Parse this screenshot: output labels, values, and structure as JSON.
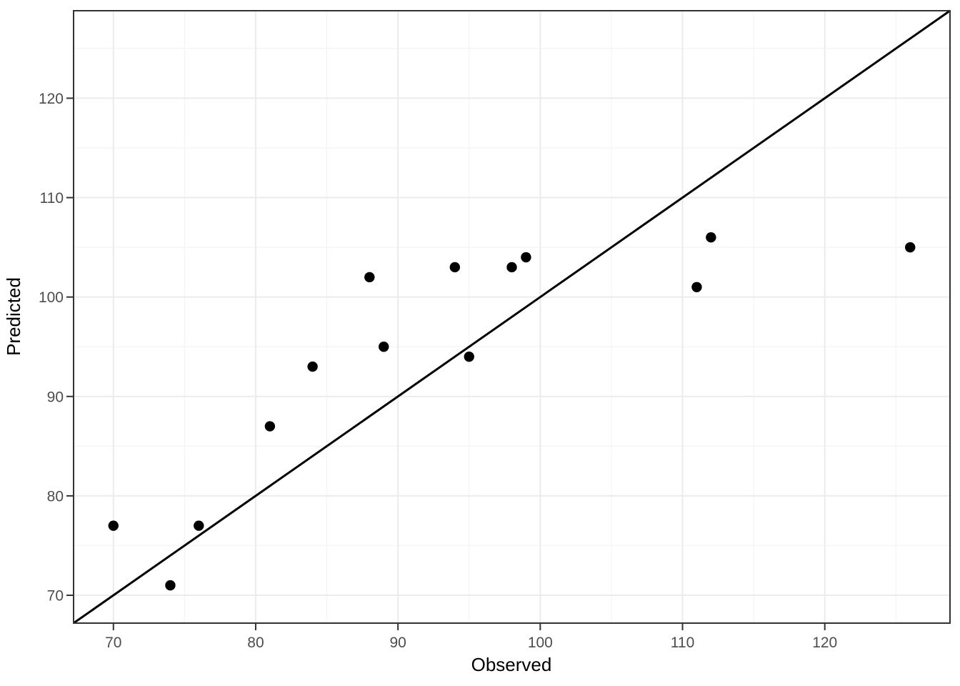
{
  "chart_data": {
    "type": "scatter",
    "title": "",
    "xlabel": "Observed",
    "ylabel": "Predicted",
    "x_range": [
      67.2,
      128.8
    ],
    "y_range": [
      67.2,
      128.8
    ],
    "x_major_ticks": [
      70,
      80,
      90,
      100,
      110,
      120
    ],
    "y_major_ticks": [
      70,
      80,
      90,
      100,
      110,
      120
    ],
    "x_minor_ticks": [
      75,
      85,
      95,
      105,
      115,
      125
    ],
    "y_minor_ticks": [
      75,
      85,
      95,
      105,
      115,
      125
    ],
    "grid": "major+minor",
    "legend": "none",
    "reference_line": {
      "slope": 1,
      "intercept": 0
    },
    "points": [
      {
        "x": 70,
        "y": 77
      },
      {
        "x": 74,
        "y": 71
      },
      {
        "x": 76,
        "y": 77
      },
      {
        "x": 81,
        "y": 87
      },
      {
        "x": 84,
        "y": 93
      },
      {
        "x": 88,
        "y": 102
      },
      {
        "x": 89,
        "y": 95
      },
      {
        "x": 94,
        "y": 103
      },
      {
        "x": 95,
        "y": 94
      },
      {
        "x": 98,
        "y": 103
      },
      {
        "x": 99,
        "y": 104
      },
      {
        "x": 111,
        "y": 101
      },
      {
        "x": 112,
        "y": 106
      },
      {
        "x": 126,
        "y": 105
      }
    ],
    "colors": {
      "point": "#000000",
      "reference_line": "#000000",
      "grid_major": "#ebebeb",
      "grid_minor": "#f4f4f4",
      "panel_border": "#333333",
      "tick_mark": "#333333",
      "tick_label": "#4d4d4d",
      "axis_title": "#000000",
      "background": "#ffffff"
    }
  }
}
